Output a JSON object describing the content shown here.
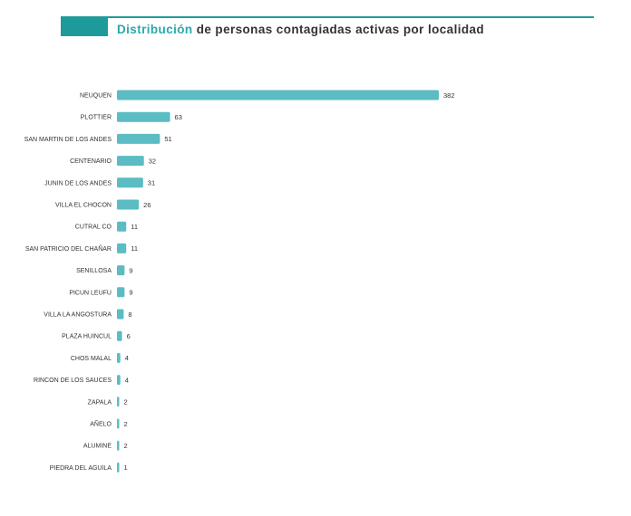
{
  "header": {
    "title_accent": "Distribución",
    "title_rest": " de personas contagiadas activas por localidad",
    "accent_color": "#1f9a9a"
  },
  "chart_data": {
    "type": "bar",
    "orientation": "horizontal",
    "title": "Distribución de personas contagiadas activas por localidad",
    "bar_color": "#5bbcc4",
    "categories": [
      "NEUQUEN",
      "PLOTTIER",
      "SAN MARTIN DE LOS ANDES",
      "CENTENARIO",
      "JUNIN DE LOS ANDES",
      "VILLA EL CHOCON",
      "CUTRAL CO",
      "SAN PATRICIO DEL CHAÑAR",
      "SENILLOSA",
      "PICUN LEUFU",
      "VILLA LA ANGOSTURA",
      "PLAZA HUINCUL",
      "CHOS MALAL",
      "RINCON DE LOS SAUCES",
      "ZAPALA",
      "AÑELO",
      "ALUMINE",
      "PIEDRA DEL AGUILA"
    ],
    "values": [
      382,
      63,
      51,
      32,
      31,
      26,
      11,
      11,
      9,
      9,
      8,
      6,
      4,
      4,
      2,
      2,
      2,
      1
    ],
    "grid": false,
    "legend": "none",
    "data_labels": true
  }
}
